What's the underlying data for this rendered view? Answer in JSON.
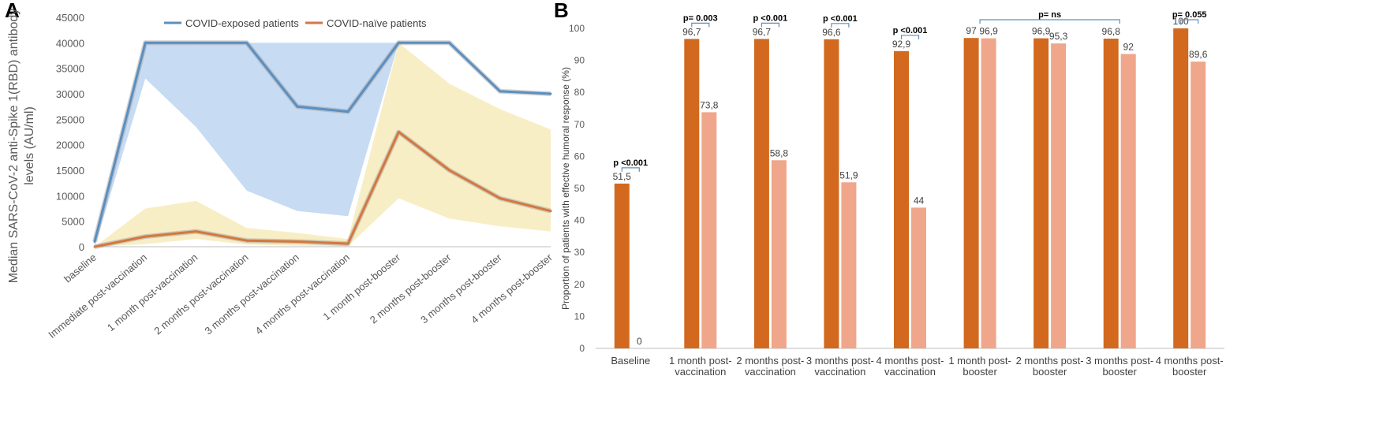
{
  "panels": {
    "a": "A",
    "b": "B"
  },
  "chart_data": [
    {
      "type": "area",
      "panel": "A",
      "title": "",
      "xlabel": "",
      "ylabel_lines": [
        "Median SARS-CoV-2 anti-Spike 1(RBD) antibody",
        "levels  (AU/ml)"
      ],
      "ylim": [
        0,
        45000
      ],
      "yticks": [
        0,
        5000,
        10000,
        15000,
        20000,
        25000,
        30000,
        35000,
        40000,
        45000
      ],
      "categories": [
        "baseline",
        "Immediate post-vaccination",
        "1 month post-vaccination",
        "2 months post-vaccination",
        "3 months post-vaccination",
        "4 months post-vaccination",
        "1 month post-booster",
        "2 months post-booster",
        "3 months post-booster",
        "4 months post-booster"
      ],
      "legend": [
        "COVID-exposed patients",
        "COVID-naïve patients"
      ],
      "series": [
        {
          "name": "COVID-exposed patients",
          "color": "#5b8fc0",
          "band_color": "#a9c8ec",
          "values": [
            1000,
            40000,
            40000,
            40000,
            27500,
            26500,
            40000,
            40000,
            30500,
            30000
          ],
          "band_low": [
            0,
            33000,
            23500,
            11000,
            7000,
            6000,
            40000,
            40000,
            40000,
            40000
          ],
          "band_high": [
            1000,
            40000,
            40000,
            40000,
            40000,
            40000,
            40000,
            40000,
            40000,
            40000
          ]
        },
        {
          "name": "COVID-naïve patients",
          "color": "#d4773f",
          "band_color": "#f3e3a0",
          "values": [
            0,
            2000,
            3000,
            1200,
            1000,
            600,
            22500,
            15000,
            9500,
            7000
          ],
          "band_low": [
            0,
            500,
            1500,
            400,
            200,
            100,
            9500,
            5500,
            4000,
            3000
          ],
          "band_high": [
            0,
            7500,
            9000,
            3700,
            2700,
            1500,
            40000,
            32000,
            27000,
            23000
          ]
        }
      ]
    },
    {
      "type": "bar",
      "panel": "B",
      "title": "",
      "xlabel": "",
      "ylabel": "Proportion of patients with effective humoral response (%)",
      "ylim": [
        0,
        100
      ],
      "yticks": [
        0,
        10,
        20,
        30,
        40,
        50,
        60,
        70,
        80,
        90,
        100
      ],
      "categories": [
        [
          "Baseline"
        ],
        [
          "1 month post-",
          "vaccination"
        ],
        [
          "2 months post-",
          "vaccination"
        ],
        [
          "3 months post-",
          "vaccination"
        ],
        [
          "4 months post-",
          "vaccination"
        ],
        [
          "1 month post-",
          "booster"
        ],
        [
          "2 months post-",
          "booster"
        ],
        [
          "3 months post-",
          "booster"
        ],
        [
          "4 months post-",
          "booster"
        ]
      ],
      "series": [
        {
          "name": "COVID-exposed patients",
          "color": "#d2691e",
          "values": [
            51.5,
            96.7,
            96.7,
            96.6,
            92.9,
            97,
            96.9,
            96.8,
            100
          ],
          "labels": [
            "51,5",
            "96,7",
            "96,7",
            "96,6",
            "92,9",
            "97",
            "96,9",
            "96,8",
            "100"
          ]
        },
        {
          "name": "COVID-naïve patients",
          "color": "#f0a68a",
          "values": [
            0,
            73.8,
            58.8,
            51.9,
            44,
            96.9,
            95.3,
            92,
            89.6
          ],
          "labels": [
            "0",
            "73,8",
            "58,8",
            "51,9",
            "44",
            "96,9",
            "95,3",
            "92",
            "89,6"
          ]
        }
      ],
      "significance": [
        {
          "text": "p <0.001",
          "category": 0
        },
        {
          "text": "p= 0.003",
          "category": 1
        },
        {
          "text": "p <0.001",
          "category": 2
        },
        {
          "text": "p <0.001",
          "category": 3
        },
        {
          "text": "p <0.001",
          "category": 4
        },
        {
          "text": "p= ns",
          "category_range": [
            5,
            7
          ]
        },
        {
          "text": "p= 0.055",
          "category": 8
        }
      ]
    }
  ]
}
